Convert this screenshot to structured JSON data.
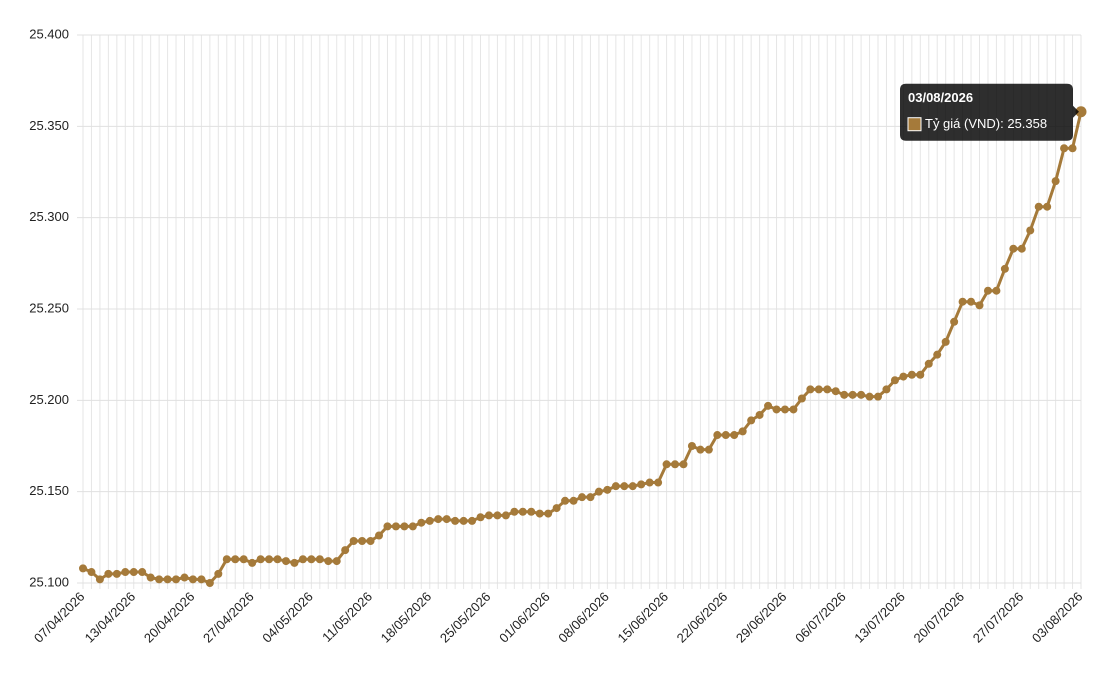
{
  "chart_data": {
    "type": "line",
    "categories": [
      "07/04/2026",
      null,
      null,
      null,
      null,
      null,
      "13/04/2026",
      null,
      null,
      null,
      null,
      null,
      null,
      "20/04/2026",
      null,
      null,
      null,
      null,
      null,
      null,
      "27/04/2026",
      null,
      null,
      null,
      null,
      null,
      null,
      "04/05/2026",
      null,
      null,
      null,
      null,
      null,
      null,
      "11/05/2026",
      null,
      null,
      null,
      null,
      null,
      null,
      "18/05/2026",
      null,
      null,
      null,
      null,
      null,
      null,
      "25/05/2026",
      null,
      null,
      null,
      null,
      null,
      null,
      "01/06/2026",
      null,
      null,
      null,
      null,
      null,
      null,
      "08/06/2026",
      null,
      null,
      null,
      null,
      null,
      null,
      "15/06/2026",
      null,
      null,
      null,
      null,
      null,
      null,
      "22/06/2026",
      null,
      null,
      null,
      null,
      null,
      null,
      "29/06/2026",
      null,
      null,
      null,
      null,
      null,
      null,
      "06/07/2026",
      null,
      null,
      null,
      null,
      null,
      null,
      "13/07/2026",
      null,
      null,
      null,
      null,
      null,
      null,
      "20/07/2026",
      null,
      null,
      null,
      null,
      null,
      null,
      "27/07/2026",
      null,
      null,
      null,
      null,
      null,
      null,
      "03/08/2026"
    ],
    "series": [
      {
        "name": "Tỷ giá (VND)",
        "color": "#a57a3a",
        "values": [
          25108,
          25106,
          25102,
          25105,
          25105,
          25106,
          25106,
          25106,
          25103,
          25102,
          25102,
          25102,
          25103,
          25102,
          25102,
          25100,
          25105,
          25113,
          25113,
          25113,
          25111,
          25113,
          25113,
          25113,
          25112,
          25111,
          25113,
          25113,
          25113,
          25112,
          25112,
          25118,
          25123,
          25123,
          25123,
          25126,
          25131,
          25131,
          25131,
          25131,
          25133,
          25134,
          25135,
          25135,
          25134,
          25134,
          25134,
          25136,
          25137,
          25137,
          25137,
          25139,
          25139,
          25139,
          25138,
          25138,
          25141,
          25145,
          25145,
          25147,
          25147,
          25150,
          25151,
          25153,
          25153,
          25153,
          25154,
          25155,
          25155,
          25165,
          25165,
          25165,
          25175,
          25173,
          25173,
          25181,
          25181,
          25181,
          25183,
          25189,
          25192,
          25197,
          25195,
          25195,
          25195,
          25201,
          25206,
          25206,
          25206,
          25205,
          25203,
          25203,
          25203,
          25202,
          25202,
          25206,
          25211,
          25213,
          25214,
          25214,
          25220,
          25225,
          25232,
          25243,
          25254,
          25254,
          25252,
          25260,
          25260,
          25272,
          25283,
          25283,
          25293,
          25306,
          25306,
          25320,
          25338,
          25338,
          25358
        ]
      }
    ],
    "ylim": [
      25100,
      25400
    ],
    "yticks": [
      {
        "value": 25100,
        "label": "25.100"
      },
      {
        "value": 25150,
        "label": "25.150"
      },
      {
        "value": 25200,
        "label": "25.200"
      },
      {
        "value": 25250,
        "label": "25.250"
      },
      {
        "value": 25300,
        "label": "25.300"
      },
      {
        "value": 25350,
        "label": "25.350"
      },
      {
        "value": 25400,
        "label": "25.400"
      }
    ],
    "grid": true,
    "tooltip": {
      "text": "Tỷ giá (VND): 25.358"
    }
  }
}
